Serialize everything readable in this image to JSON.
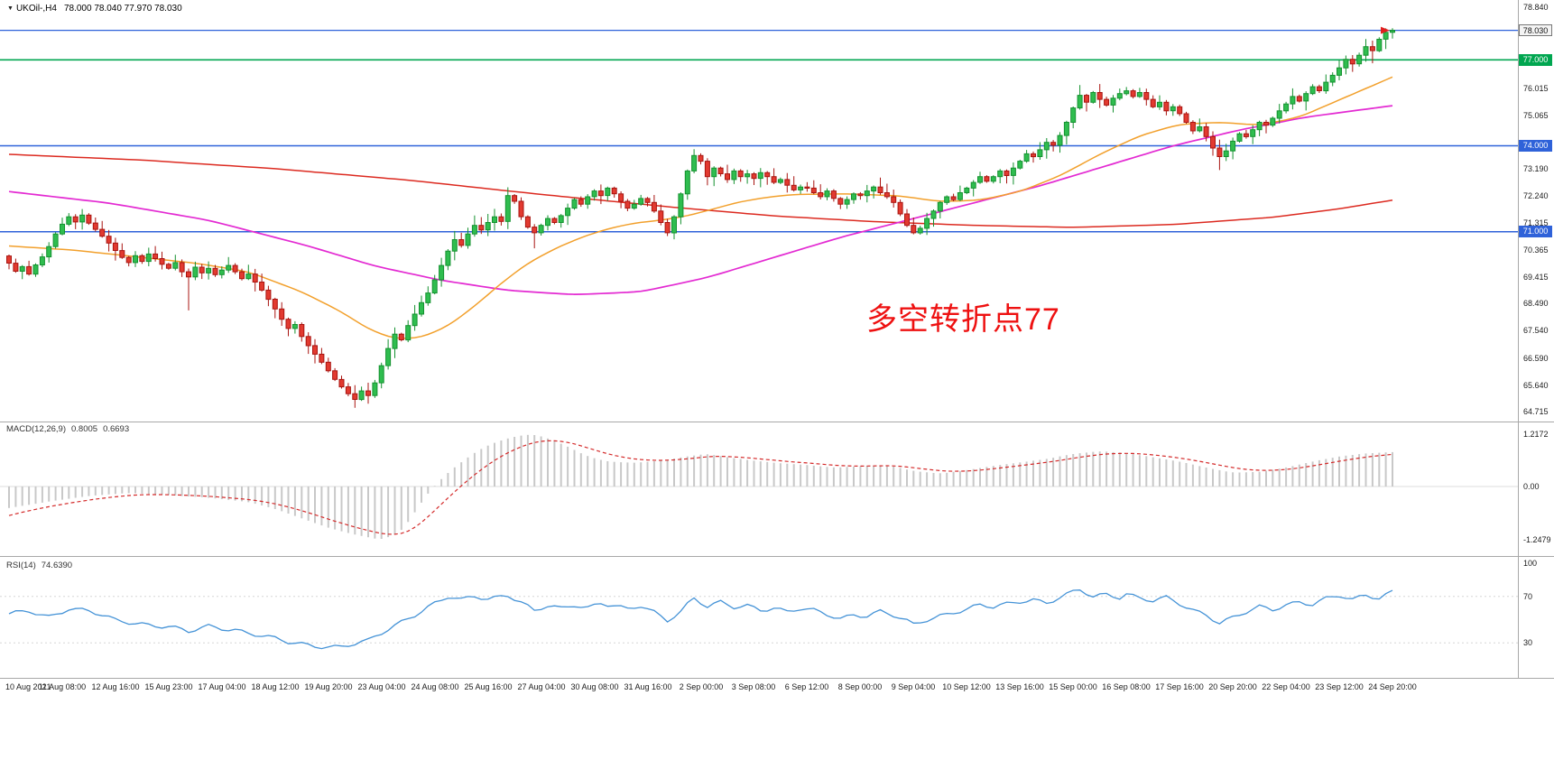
{
  "title": {
    "marker": "▼",
    "symbol": "UKOil-,H4",
    "ohlc": "78.000 78.040 77.970 78.030"
  },
  "annotation": {
    "text": "多空转折点77",
    "color": "#ee1111"
  },
  "colors": {
    "candle_up": {
      "fill": "#2fbd4f",
      "stroke": "#14912f"
    },
    "candle_down": {
      "fill": "#e23a30",
      "stroke": "#a81410"
    },
    "blue_level": "#2f62d9",
    "green_level": "#00a650"
  },
  "price_axis_boxes": [
    {
      "price": 78.03,
      "label": "78.030",
      "bg": "#f4f4f4",
      "fg": "#111111",
      "border": "#777777"
    },
    {
      "price": 77.0,
      "label": "77.000",
      "bg": "#00a650",
      "fg": "#ffffff"
    },
    {
      "price": 74.0,
      "label": "74.000",
      "bg": "#2f62d9",
      "fg": "#ffffff"
    },
    {
      "price": 71.0,
      "label": "71.000",
      "bg": "#2f62d9",
      "fg": "#ffffff"
    }
  ],
  "chart_data": [
    {
      "type": "candlestick",
      "title": "UKOil-,H4",
      "ohlc_label": "78.000 78.040 77.970 78.030",
      "ylim": [
        64.37,
        79.09
      ],
      "price_ticks": [
        78.84,
        76.015,
        75.065,
        73.19,
        72.24,
        71.315,
        70.365,
        69.415,
        68.49,
        67.54,
        66.59,
        65.64,
        64.715
      ],
      "hlines": [
        {
          "price": 78.03,
          "color": "#2f62d9",
          "width": 1.3
        },
        {
          "price": 77.0,
          "color": "#00a650",
          "width": 1.6
        },
        {
          "price": 74.0,
          "color": "#2f62d9",
          "width": 1.5
        },
        {
          "price": 71.0,
          "color": "#2f62d9",
          "width": 1.5
        }
      ],
      "x_labels": [
        "10 Aug 2021",
        "11 Aug 08:00",
        "12 Aug 16:00",
        "15 Aug 23:00",
        "17 Aug 04:00",
        "18 Aug 12:00",
        "19 Aug 20:00",
        "23 Aug 04:00",
        "24 Aug 08:00",
        "25 Aug 16:00",
        "27 Aug 04:00",
        "30 Aug 08:00",
        "31 Aug 16:00",
        "2 Sep 00:00",
        "3 Sep 08:00",
        "6 Sep 12:00",
        "8 Sep 00:00",
        "9 Sep 04:00",
        "10 Sep 12:00",
        "13 Sep 16:00",
        "15 Sep 00:00",
        "16 Sep 08:00",
        "17 Sep 16:00",
        "20 Sep 20:00",
        "22 Sep 04:00",
        "23 Sep 12:00",
        "24 Sep 20:00"
      ],
      "first_open": 70.15,
      "closes": [
        69.9,
        69.62,
        69.78,
        69.52,
        69.84,
        70.12,
        70.48,
        70.92,
        71.26,
        71.52,
        71.34,
        71.58,
        71.3,
        71.08,
        70.84,
        70.6,
        70.34,
        70.1,
        69.92,
        70.16,
        69.96,
        70.22,
        70.06,
        69.86,
        69.72,
        69.92,
        69.6,
        69.42,
        69.76,
        69.56,
        69.72,
        69.5,
        69.66,
        69.82,
        69.6,
        69.36,
        69.52,
        69.24,
        68.96,
        68.64,
        68.3,
        67.94,
        67.62,
        67.76,
        67.34,
        67.02,
        66.72,
        66.44,
        66.14,
        65.84,
        65.58,
        65.34,
        65.14,
        65.44,
        65.28,
        65.72,
        66.32,
        66.92,
        67.42,
        67.22,
        67.72,
        68.12,
        68.52,
        68.86,
        69.32,
        69.82,
        70.32,
        70.72,
        70.52,
        70.92,
        71.22,
        71.06,
        71.32,
        71.52,
        71.36,
        72.26,
        72.06,
        71.52,
        71.16,
        70.96,
        71.22,
        71.46,
        71.32,
        71.56,
        71.82,
        72.12,
        71.96,
        72.22,
        72.42,
        72.26,
        72.52,
        72.32,
        72.06,
        71.82,
        71.96,
        72.16,
        72.02,
        71.72,
        71.32,
        70.96,
        71.52,
        72.32,
        73.12,
        73.66,
        73.46,
        72.92,
        73.22,
        73.02,
        72.82,
        73.12,
        72.92,
        73.02,
        72.86,
        73.06,
        72.92,
        72.72,
        72.82,
        72.62,
        72.46,
        72.56,
        72.52,
        72.36,
        72.22,
        72.42,
        72.16,
        71.96,
        72.12,
        72.32,
        72.26,
        72.42,
        72.56,
        72.36,
        72.22,
        72.02,
        71.62,
        71.22,
        70.96,
        71.12,
        71.46,
        71.72,
        72.02,
        72.22,
        72.12,
        72.36,
        72.52,
        72.72,
        72.92,
        72.76,
        72.92,
        73.12,
        72.96,
        73.22,
        73.46,
        73.72,
        73.62,
        73.86,
        74.12,
        74.02,
        74.36,
        74.82,
        75.32,
        75.76,
        75.52,
        75.86,
        75.62,
        75.42,
        75.66,
        75.82,
        75.92,
        75.72,
        75.86,
        75.62,
        75.36,
        75.52,
        75.22,
        75.36,
        75.12,
        74.82,
        74.52,
        74.66,
        74.32,
        73.92,
        73.62,
        73.82,
        74.16,
        74.42,
        74.32,
        74.56,
        74.82,
        74.72,
        74.96,
        75.22,
        75.46,
        75.72,
        75.56,
        75.82,
        76.06,
        75.92,
        76.22,
        76.46,
        76.72,
        77.02,
        76.86,
        77.16,
        77.46,
        77.32,
        77.72,
        77.96,
        78.03
      ],
      "wick_overrides": {
        "27": {
          "l": 68.25
        },
        "52": {
          "l": 64.85
        },
        "75": {
          "h": 72.55
        },
        "79": {
          "l": 70.42
        },
        "103": {
          "h": 73.88
        },
        "161": {
          "h": 76.12
        },
        "168": {
          "h": 76.05
        },
        "182": {
          "l": 73.15
        },
        "205": {
          "l": 76.88
        },
        "208": {
          "h": 78.1
        }
      },
      "moving_averages": [
        {
          "name": "ma-slow-red",
          "color": "#dc2a20",
          "width": 1.5,
          "anchors": [
            [
              0,
              73.7
            ],
            [
              20,
              73.5
            ],
            [
              40,
              73.2
            ],
            [
              60,
              72.8
            ],
            [
              80,
              72.3
            ],
            [
              100,
              71.85
            ],
            [
              115,
              71.55
            ],
            [
              130,
              71.35
            ],
            [
              145,
              71.22
            ],
            [
              160,
              71.15
            ],
            [
              175,
              71.25
            ],
            [
              190,
              71.5
            ],
            [
              200,
              71.8
            ],
            [
              208,
              72.1
            ]
          ]
        },
        {
          "name": "ma-mid-magenta",
          "color": "#e32ad2",
          "width": 1.7,
          "anchors": [
            [
              0,
              72.4
            ],
            [
              15,
              72.0
            ],
            [
              30,
              71.4
            ],
            [
              45,
              70.5
            ],
            [
              55,
              69.8
            ],
            [
              65,
              69.3
            ],
            [
              75,
              68.95
            ],
            [
              85,
              68.8
            ],
            [
              95,
              68.9
            ],
            [
              105,
              69.4
            ],
            [
              115,
              70.1
            ],
            [
              125,
              70.8
            ],
            [
              135,
              71.4
            ],
            [
              145,
              72.0
            ],
            [
              155,
              72.6
            ],
            [
              165,
              73.3
            ],
            [
              175,
              74.0
            ],
            [
              185,
              74.55
            ],
            [
              195,
              75.0
            ],
            [
              208,
              75.4
            ]
          ]
        },
        {
          "name": "ma-fast-orange",
          "color": "#f2a02c",
          "width": 1.5,
          "anchors": [
            [
              0,
              70.5
            ],
            [
              10,
              70.35
            ],
            [
              20,
              70.1
            ],
            [
              28,
              69.9
            ],
            [
              36,
              69.6
            ],
            [
              44,
              68.9
            ],
            [
              50,
              68.2
            ],
            [
              54,
              67.6
            ],
            [
              58,
              67.25
            ],
            [
              62,
              67.3
            ],
            [
              66,
              67.7
            ],
            [
              70,
              68.4
            ],
            [
              74,
              69.2
            ],
            [
              78,
              69.9
            ],
            [
              82,
              70.4
            ],
            [
              86,
              70.8
            ],
            [
              90,
              71.1
            ],
            [
              94,
              71.3
            ],
            [
              98,
              71.4
            ],
            [
              102,
              71.55
            ],
            [
              106,
              71.8
            ],
            [
              110,
              72.05
            ],
            [
              114,
              72.2
            ],
            [
              118,
              72.3
            ],
            [
              126,
              72.32
            ],
            [
              134,
              72.25
            ],
            [
              140,
              72.05
            ],
            [
              146,
              72.1
            ],
            [
              152,
              72.4
            ],
            [
              158,
              72.95
            ],
            [
              164,
              73.7
            ],
            [
              170,
              74.35
            ],
            [
              176,
              74.75
            ],
            [
              182,
              74.82
            ],
            [
              188,
              74.72
            ],
            [
              194,
              75.0
            ],
            [
              200,
              75.6
            ],
            [
              204,
              76.0
            ],
            [
              208,
              76.4
            ]
          ]
        }
      ]
    },
    {
      "type": "bar",
      "name": "MACD",
      "label": "MACD(12,26,9)",
      "main_value": "0.8005",
      "signal_value": "0.6693",
      "ticks": [
        1.2172,
        0,
        -1.2479
      ],
      "tick_labels": [
        "1.2172",
        "0.00",
        "-1.2479"
      ],
      "histogram_color": "#c8c8c8",
      "signal_color": "#d42a2a",
      "anchors": [
        [
          0,
          -0.5
        ],
        [
          6,
          -0.35
        ],
        [
          12,
          -0.22
        ],
        [
          18,
          -0.15
        ],
        [
          24,
          -0.2
        ],
        [
          30,
          -0.26
        ],
        [
          36,
          -0.36
        ],
        [
          40,
          -0.52
        ],
        [
          44,
          -0.74
        ],
        [
          48,
          -0.96
        ],
        [
          52,
          -1.12
        ],
        [
          56,
          -1.24
        ],
        [
          59,
          -1.05
        ],
        [
          61,
          -0.6
        ],
        [
          63,
          -0.15
        ],
        [
          65,
          0.18
        ],
        [
          67,
          0.45
        ],
        [
          69,
          0.68
        ],
        [
          71,
          0.88
        ],
        [
          73,
          1.02
        ],
        [
          75,
          1.12
        ],
        [
          77,
          1.19
        ],
        [
          79,
          1.21
        ],
        [
          81,
          1.12
        ],
        [
          83,
          1.0
        ],
        [
          85,
          0.85
        ],
        [
          87,
          0.7
        ],
        [
          90,
          0.58
        ],
        [
          94,
          0.55
        ],
        [
          98,
          0.6
        ],
        [
          102,
          0.7
        ],
        [
          105,
          0.76
        ],
        [
          108,
          0.68
        ],
        [
          112,
          0.6
        ],
        [
          116,
          0.54
        ],
        [
          120,
          0.5
        ],
        [
          124,
          0.44
        ],
        [
          128,
          0.47
        ],
        [
          132,
          0.5
        ],
        [
          136,
          0.36
        ],
        [
          140,
          0.3
        ],
        [
          144,
          0.38
        ],
        [
          148,
          0.48
        ],
        [
          152,
          0.56
        ],
        [
          156,
          0.64
        ],
        [
          160,
          0.76
        ],
        [
          164,
          0.82
        ],
        [
          168,
          0.78
        ],
        [
          172,
          0.68
        ],
        [
          176,
          0.58
        ],
        [
          180,
          0.44
        ],
        [
          184,
          0.32
        ],
        [
          188,
          0.34
        ],
        [
          192,
          0.44
        ],
        [
          196,
          0.58
        ],
        [
          200,
          0.7
        ],
        [
          204,
          0.77
        ],
        [
          208,
          0.8
        ]
      ]
    },
    {
      "type": "line",
      "name": "RSI",
      "label": "RSI(14)",
      "value": "74.6390",
      "color": "#4593d7",
      "ylim": [
        0,
        100
      ],
      "ticks": [
        100,
        70,
        30
      ],
      "anchors": [
        [
          0,
          54
        ],
        [
          3,
          57
        ],
        [
          6,
          53
        ],
        [
          9,
          60
        ],
        [
          12,
          57
        ],
        [
          16,
          49
        ],
        [
          20,
          47
        ],
        [
          24,
          44
        ],
        [
          27,
          39
        ],
        [
          30,
          44
        ],
        [
          34,
          42
        ],
        [
          38,
          36
        ],
        [
          42,
          30
        ],
        [
          46,
          28
        ],
        [
          50,
          27
        ],
        [
          54,
          31
        ],
        [
          56,
          38
        ],
        [
          58,
          45
        ],
        [
          60,
          52
        ],
        [
          62,
          58
        ],
        [
          64,
          64
        ],
        [
          66,
          69
        ],
        [
          68,
          66
        ],
        [
          70,
          70
        ],
        [
          72,
          68
        ],
        [
          74,
          71
        ],
        [
          75,
          72
        ],
        [
          77,
          65
        ],
        [
          79,
          57
        ],
        [
          81,
          61
        ],
        [
          83,
          59
        ],
        [
          85,
          63
        ],
        [
          87,
          61
        ],
        [
          89,
          65
        ],
        [
          91,
          62
        ],
        [
          93,
          58
        ],
        [
          95,
          61
        ],
        [
          97,
          56
        ],
        [
          99,
          50
        ],
        [
          101,
          58
        ],
        [
          102,
          64
        ],
        [
          103,
          69
        ],
        [
          105,
          61
        ],
        [
          107,
          64
        ],
        [
          109,
          60
        ],
        [
          111,
          62
        ],
        [
          113,
          59
        ],
        [
          115,
          61
        ],
        [
          117,
          57
        ],
        [
          119,
          59
        ],
        [
          121,
          57
        ],
        [
          123,
          54
        ],
        [
          125,
          51
        ],
        [
          127,
          55
        ],
        [
          129,
          54
        ],
        [
          131,
          57
        ],
        [
          133,
          53
        ],
        [
          135,
          48
        ],
        [
          136,
          45
        ],
        [
          138,
          50
        ],
        [
          140,
          54
        ],
        [
          142,
          57
        ],
        [
          144,
          59
        ],
        [
          146,
          62
        ],
        [
          148,
          60
        ],
        [
          150,
          63
        ],
        [
          152,
          66
        ],
        [
          154,
          68
        ],
        [
          156,
          65
        ],
        [
          158,
          69
        ],
        [
          160,
          73
        ],
        [
          161,
          75
        ],
        [
          163,
          69
        ],
        [
          165,
          72
        ],
        [
          167,
          70
        ],
        [
          168,
          73
        ],
        [
          170,
          69
        ],
        [
          172,
          66
        ],
        [
          174,
          68
        ],
        [
          176,
          63
        ],
        [
          178,
          58
        ],
        [
          180,
          55
        ],
        [
          182,
          48
        ],
        [
          184,
          52
        ],
        [
          186,
          56
        ],
        [
          188,
          60
        ],
        [
          190,
          58
        ],
        [
          192,
          63
        ],
        [
          194,
          66
        ],
        [
          196,
          64
        ],
        [
          198,
          68
        ],
        [
          200,
          70
        ],
        [
          202,
          66
        ],
        [
          204,
          71
        ],
        [
          206,
          69
        ],
        [
          208,
          75
        ]
      ]
    }
  ]
}
